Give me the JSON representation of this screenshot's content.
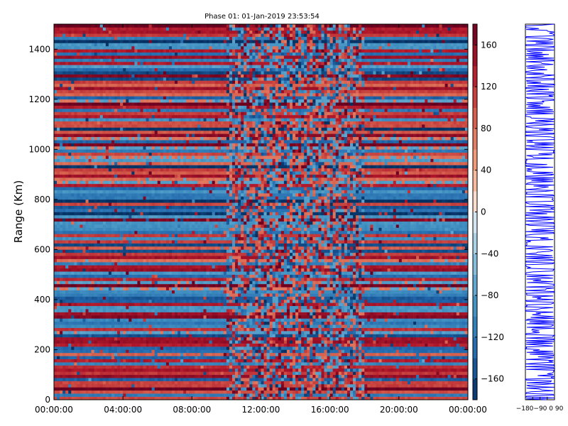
{
  "chart_data": [
    {
      "type": "heatmap",
      "title": "Phase 01: 01-Jan-2019 23:53:54",
      "xlabel": "",
      "ylabel": "Range (Km)",
      "x_ticks": [
        "00:00:00",
        "04:00:00",
        "08:00:00",
        "12:00:00",
        "16:00:00",
        "20:00:00",
        "00:00:00"
      ],
      "y_ticks": [
        0,
        200,
        400,
        600,
        800,
        1000,
        1200,
        1400
      ],
      "xlim_hours": [
        0,
        24
      ],
      "ylim": [
        0,
        1500
      ],
      "grid": false,
      "colormap": "RdBu_r",
      "colorbar": {
        "range": [
          -180,
          180
        ],
        "ticks": [
          "160",
          "120",
          "80",
          "40",
          "0",
          "−40",
          "−80",
          "−120",
          "−160"
        ],
        "tick_values": [
          160,
          120,
          80,
          40,
          0,
          -40,
          -80,
          -120,
          -160
        ]
      },
      "pattern": {
        "uniform_periods_hours": [
          [
            0,
            10
          ],
          [
            18,
            24
          ]
        ],
        "mixed_period_hours": [
          10,
          18
        ]
      }
    },
    {
      "type": "line",
      "title": "",
      "xlim": [
        -180,
        180
      ],
      "x_tick_text": "−180−90 0 90",
      "color": "#0000ff"
    }
  ]
}
